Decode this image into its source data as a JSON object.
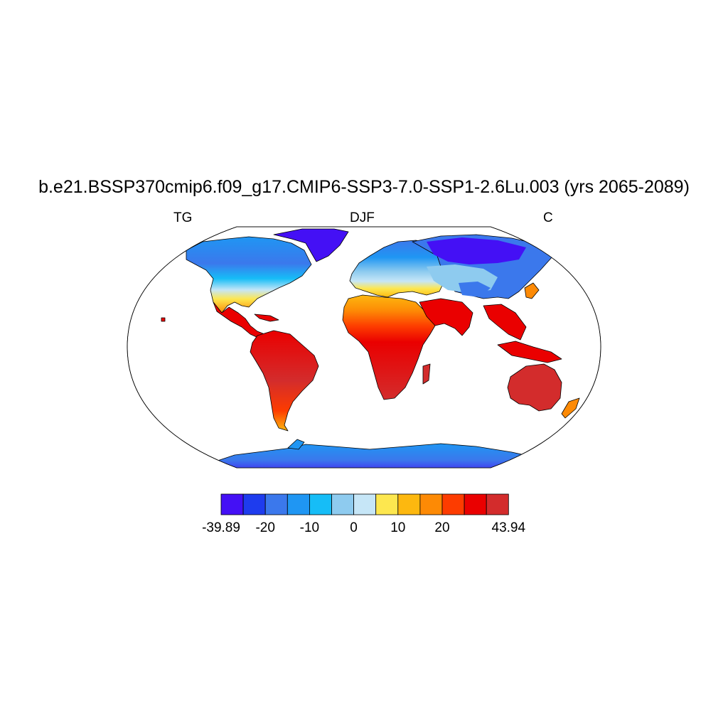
{
  "title": "b.e21.BSSP370cmip6.f09_g17.CMIP6-SSP3-7.0-SSP1-2.6Lu.003 (yrs 2065-2089)",
  "subtitle_left": "TG",
  "subtitle_center": "DJF",
  "subtitle_right": "C",
  "colorbar": {
    "colors": [
      "#4410f5",
      "#1e3cee",
      "#3b78ec",
      "#1f96f3",
      "#16bdf7",
      "#8ecbef",
      "#c6e6f7",
      "#fde74f",
      "#fdb80f",
      "#fd8a05",
      "#fd3c00",
      "#ea0000",
      "#d32c2c"
    ],
    "labels": [
      {
        "text": "-39.89",
        "index": 0
      },
      {
        "text": "-20",
        "index": 2
      },
      {
        "text": "-10",
        "index": 4
      },
      {
        "text": "0",
        "index": 6
      },
      {
        "text": "10",
        "index": 8
      },
      {
        "text": "20",
        "index": 10
      },
      {
        "text": "43.94",
        "index": 13
      }
    ]
  },
  "map": {
    "projection": "Robinson",
    "ocean_color": "#ffffff",
    "coastline_color": "#000000"
  }
}
